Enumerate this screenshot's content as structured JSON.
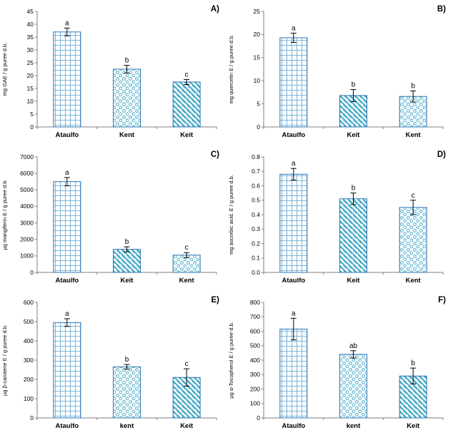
{
  "figure": {
    "background": "#ffffff"
  },
  "colors": {
    "bar_outline": "#2E75B6",
    "pattern_line": "#4BACC6",
    "grid_pattern_line": "#7EB6D9",
    "error_bar": "#000000",
    "axis": "#7f7f7f",
    "text": "#000000"
  },
  "patterns_by_cultivar": {
    "Ataulfo": "grid",
    "Kent": "dots",
    "kent": "dots",
    "Keit": "stripes"
  },
  "chart_data": [
    {
      "type": "bar",
      "panel_label": "A)",
      "title": "",
      "xlabel": "",
      "ylabel": "mg GAE / g puree d.b.",
      "ylim": [
        0,
        45
      ],
      "ytick_step": 5,
      "ytick_decimals": 0,
      "grid": false,
      "legend": "none",
      "categories": [
        "Ataulfo",
        "Kent",
        "Keit"
      ],
      "values": [
        37,
        22.5,
        17.5
      ],
      "errors": [
        1.5,
        1.5,
        1
      ],
      "sig_letters": [
        "a",
        "b",
        "c"
      ]
    },
    {
      "type": "bar",
      "panel_label": "B)",
      "title": "",
      "xlabel": "",
      "ylabel": "mg quercetin E / g puree d.b.",
      "ylim": [
        0,
        25
      ],
      "ytick_step": 5,
      "ytick_decimals": 0,
      "grid": false,
      "legend": "none",
      "categories": [
        "Ataulfo",
        "Keit",
        "Kent"
      ],
      "values": [
        19.3,
        6.8,
        6.6
      ],
      "errors": [
        1,
        1.3,
        1.2
      ],
      "sig_letters": [
        "a",
        "b",
        "b"
      ]
    },
    {
      "type": "bar",
      "panel_label": "C)",
      "title": "",
      "xlabel": "",
      "ylabel": "µg mangiferin E / g puree d.b.",
      "ylim": [
        0,
        7000
      ],
      "ytick_step": 1000,
      "ytick_decimals": 0,
      "grid": false,
      "legend": "none",
      "categories": [
        "Ataulfo",
        "Keit",
        "Kent"
      ],
      "values": [
        5500,
        1400,
        1050
      ],
      "errors": [
        250,
        150,
        150
      ],
      "sig_letters": [
        "a",
        "b",
        "c"
      ]
    },
    {
      "type": "bar",
      "panel_label": "D)",
      "title": "",
      "xlabel": "",
      "ylabel": "mg ascorbic acid. E / g puree d.b.",
      "ylim": [
        0,
        0.8
      ],
      "ytick_step": 0.1,
      "ytick_decimals": 1,
      "grid": false,
      "legend": "none",
      "categories": [
        "Ataulfo",
        "Keit",
        "Kent"
      ],
      "values": [
        0.68,
        0.51,
        0.45
      ],
      "errors": [
        0.04,
        0.04,
        0.05
      ],
      "sig_letters": [
        "a",
        "b",
        "c"
      ]
    },
    {
      "type": "bar",
      "panel_label": "E)",
      "title": "",
      "xlabel": "",
      "ylabel": "µg β-carotene E / g puree d.b.",
      "ylim": [
        0,
        600
      ],
      "ytick_step": 100,
      "ytick_decimals": 0,
      "grid": false,
      "legend": "none",
      "categories": [
        "Ataulfo",
        "kent",
        "Keit"
      ],
      "values": [
        495,
        265,
        210
      ],
      "errors": [
        20,
        12,
        45
      ],
      "sig_letters": [
        "a",
        "b",
        "c"
      ]
    },
    {
      "type": "bar",
      "panel_label": "F)",
      "title": "",
      "xlabel": "",
      "ylabel": "µg α-Tocopherol E / g puree d.b.",
      "ylim": [
        0,
        800
      ],
      "ytick_step": 100,
      "ytick_decimals": 0,
      "grid": false,
      "legend": "none",
      "categories": [
        "Ataulfo",
        "kent",
        "Keit"
      ],
      "values": [
        615,
        440,
        290
      ],
      "errors": [
        75,
        25,
        55
      ],
      "sig_letters": [
        "a",
        "ab",
        "b"
      ]
    }
  ]
}
